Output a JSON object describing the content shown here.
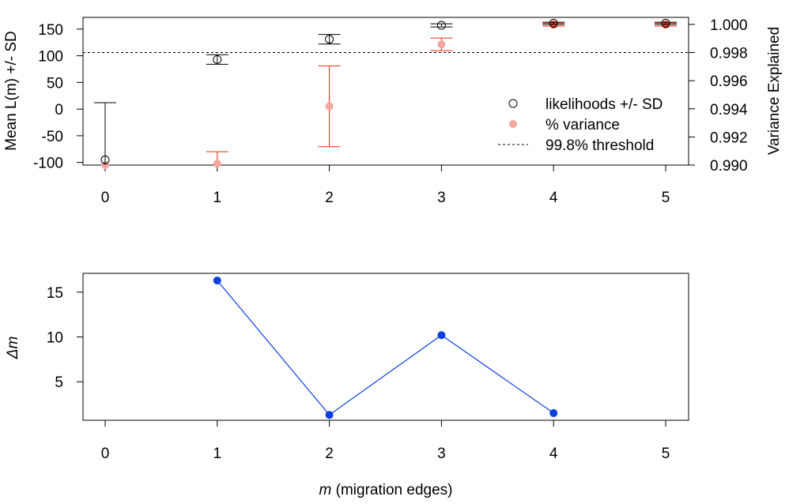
{
  "chart_data": [
    {
      "type": "scatter",
      "panel": "top",
      "ylabel": "Mean L(m) +/- SD",
      "ylabel_right": "Variance Explained",
      "x": [
        0,
        1,
        2,
        3,
        4,
        5
      ],
      "x_ticks": [
        "0",
        "1",
        "2",
        "3",
        "4",
        "5"
      ],
      "ylim": [
        -105,
        172
      ],
      "y_ticks": [
        "-100",
        "-50",
        "0",
        "50",
        "100",
        "150"
      ],
      "y_tick_values": [
        -100,
        -50,
        0,
        50,
        100,
        150
      ],
      "ylim_right": [
        0.99,
        1.0005
      ],
      "y_ticks_right": [
        "0.990",
        "0.992",
        "0.994",
        "0.996",
        "0.998",
        "1.000"
      ],
      "y_tick_values_right": [
        0.99,
        0.992,
        0.994,
        0.996,
        0.998,
        1.0
      ],
      "threshold": 0.998,
      "series": [
        {
          "name": "likelihoods +/- SD",
          "color": "#000000",
          "marker": "open-circle",
          "values": [
            -95,
            93,
            131,
            157,
            161,
            161
          ],
          "sd": [
            107,
            9,
            9,
            3,
            2,
            2
          ]
        },
        {
          "name": "% variance",
          "color": "#e8432e",
          "marker": "filled-circle",
          "values": [
            0.99,
            0.9901,
            0.99418,
            0.99858,
            0.99999,
            0.99999
          ],
          "sd": [
            0,
            0.00085,
            0.00287,
            0.00045,
            0.0001,
            0.0001
          ]
        }
      ],
      "legend": {
        "position": "right",
        "entries": [
          "likelihoods +/- SD",
          "% variance",
          "99.8% threshold"
        ]
      }
    },
    {
      "type": "line",
      "panel": "bottom",
      "ylabel": "Δm",
      "xlabel_italic": "m",
      "xlabel_rest": " (migration edges)",
      "x": [
        1,
        2,
        3,
        4
      ],
      "values": [
        16.3,
        1.3,
        10.2,
        1.5
      ],
      "color": "#0b3fe0",
      "xlim": [
        0,
        5
      ],
      "x_ticks": [
        "0",
        "1",
        "2",
        "3",
        "4",
        "5"
      ],
      "ylim": [
        0.7,
        17.1
      ],
      "y_ticks": [
        "5",
        "10",
        "15"
      ],
      "y_tick_values": [
        5,
        10,
        15
      ]
    }
  ]
}
